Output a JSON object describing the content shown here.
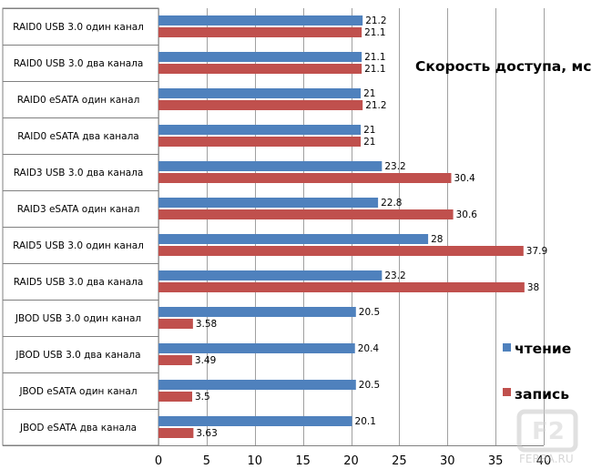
{
  "chart_data": {
    "type": "bar",
    "orientation": "horizontal",
    "title": "Скорость доступа, мс",
    "categories": [
      "RAID0 USB 3.0 один канал",
      "RAID0 USB 3.0 два канала",
      "RAID0 eSATA один канал",
      "RAID0 eSATA два канала",
      "RAID3 USB 3.0 два канала",
      "RAID3 eSATA один канал",
      "RAID5 USB 3.0 один канал",
      "RAID5 USB 3.0 два канала",
      "JBOD USB 3.0 один канал",
      "JBOD USB 3.0 два канала",
      "JBOD eSATA один канал",
      "JBOD eSATA два канала"
    ],
    "series": [
      {
        "name": "чтение",
        "color": "#4f81bd",
        "values": [
          21.2,
          21.1,
          21,
          21,
          23.2,
          22.8,
          28,
          23.2,
          20.5,
          20.4,
          20.5,
          20.1
        ],
        "labels": [
          "21.2",
          "21.1",
          "21",
          "21",
          "23.2",
          "22.8",
          "28",
          "23.2",
          "20.5",
          "20.4",
          "20.5",
          "20.1"
        ]
      },
      {
        "name": "запись",
        "color": "#c0504d",
        "values": [
          21.1,
          21.1,
          21.2,
          21,
          30.4,
          30.6,
          37.9,
          38,
          3.58,
          3.49,
          3.5,
          3.63
        ],
        "labels": [
          "21.1",
          "21.1",
          "21.2",
          "21",
          "30.4",
          "30.6",
          "37.9",
          "38",
          "3.58",
          "3.49",
          "3.5",
          "3.63"
        ]
      }
    ],
    "xlim": [
      0,
      40
    ],
    "xticks": [
      "0",
      "5",
      "10",
      "15",
      "20",
      "25",
      "30",
      "35",
      "40"
    ],
    "grid": true,
    "legend_position": "right",
    "gridline_color": "#a0a0a0"
  },
  "watermark": {
    "text": "FERRA.RU",
    "logo_text": "F2"
  }
}
